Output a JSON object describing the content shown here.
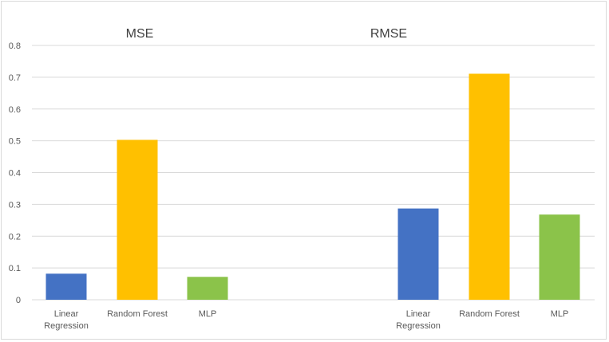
{
  "chart_data": {
    "type": "bar",
    "ylim": [
      0,
      0.8
    ],
    "y_ticks": [
      "0",
      "0.1",
      "0.2",
      "0.3",
      "0.4",
      "0.5",
      "0.6",
      "0.7",
      "0.8"
    ],
    "grid": true,
    "groups": [
      {
        "title": "MSE",
        "categories": [
          "Linear Regression",
          "Random Forest",
          "MLP"
        ],
        "category_lines": [
          [
            "Linear",
            "Regression"
          ],
          [
            "Random Forest"
          ],
          [
            "MLP"
          ]
        ],
        "values": [
          0.082,
          0.503,
          0.072
        ],
        "colors": [
          "#4472C4",
          "#FFC000",
          "#8BC34A"
        ]
      },
      {
        "title": "RMSE",
        "categories": [
          "Linear Regression",
          "Random Forest",
          "MLP"
        ],
        "category_lines": [
          [
            "Linear",
            "Regression"
          ],
          [
            "Random Forest"
          ],
          [
            "MLP"
          ]
        ],
        "values": [
          0.287,
          0.711,
          0.268
        ],
        "colors": [
          "#4472C4",
          "#FFC000",
          "#8BC34A"
        ]
      }
    ]
  }
}
